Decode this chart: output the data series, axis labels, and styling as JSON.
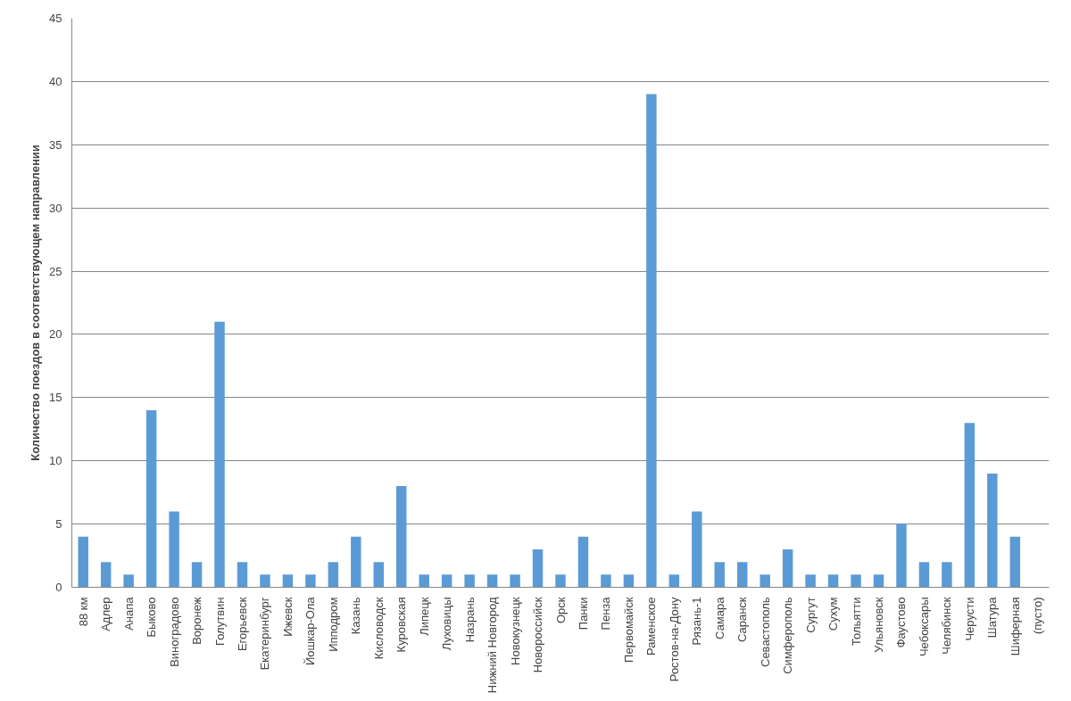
{
  "chart_data": {
    "type": "bar",
    "ylabel": "Количество поездов в соответствующем направлении",
    "categories": [
      "88 км",
      "Адлер",
      "Анапа",
      "Быково",
      "Виноградово",
      "Воронеж",
      "Голутвин",
      "Егорьевск",
      "Екатеринбург",
      "Ижевск",
      "Йошкар-Ола",
      "Ипподром",
      "Казань",
      "Кисловодск",
      "Куровская",
      "Липецк",
      "Луховицы",
      "Назрань",
      "Нижний Новгород",
      "Новокузнецк",
      "Новороссийск",
      "Орск",
      "Панки",
      "Пенза",
      "Первомайск",
      "Раменское",
      "Ростов-на-Дону",
      "Рязань-1",
      "Самара",
      "Саранск",
      "Севастополь",
      "Симферополь",
      "Сургут",
      "Сухум",
      "Тольятти",
      "Ульяновск",
      "Фаустово",
      "Чебоксары",
      "Челябинск",
      "Черусти",
      "Шатура",
      "Шиферная",
      "(пусто)"
    ],
    "values": [
      4,
      2,
      1,
      14,
      6,
      2,
      21,
      2,
      1,
      1,
      1,
      2,
      4,
      2,
      8,
      1,
      1,
      1,
      1,
      1,
      3,
      1,
      4,
      1,
      1,
      39,
      1,
      6,
      2,
      2,
      1,
      3,
      1,
      1,
      1,
      1,
      5,
      2,
      2,
      13,
      9,
      4,
      null
    ],
    "color": "#5b9bd5",
    "ylim": [
      0,
      45
    ],
    "yticks": [
      0,
      5,
      10,
      15,
      20,
      25,
      30,
      35,
      40,
      45
    ],
    "grid": "y"
  }
}
